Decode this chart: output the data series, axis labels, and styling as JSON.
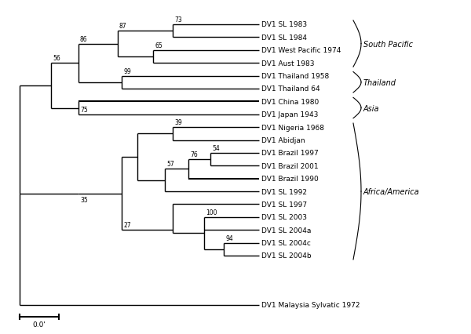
{
  "figsize": [
    6.0,
    4.27
  ],
  "dpi": 100,
  "background": "#ffffff",
  "scale_bar_label": "0.0'",
  "taxa": [
    "DV1 SL 1983",
    "DV1 SL 1984",
    "DV1 West Pacific 1974",
    "DV1 Aust 1983",
    "DV1 Thailand 1958",
    "DV1 Thailand 64",
    "DV1 China 1980",
    "DV1 Japan 1943",
    "DV1 Nigeria 1968",
    "DV1 Abidjan",
    "DV1 Brazil 1997",
    "DV1 Brazil 2001",
    "DV1 Brazil 1990",
    "DV1 SL 1992",
    "DV1 SL 1997",
    "DV1 SL 2003",
    "DV1 SL 2004a",
    "DV1 SL 2004c",
    "DV1 SL 2004b",
    "DV1 Malaysia Sylvatic 1972"
  ],
  "leaf_fontsize": 6.5,
  "bootstrap_fontsize": 5.5,
  "lw": 1.0
}
